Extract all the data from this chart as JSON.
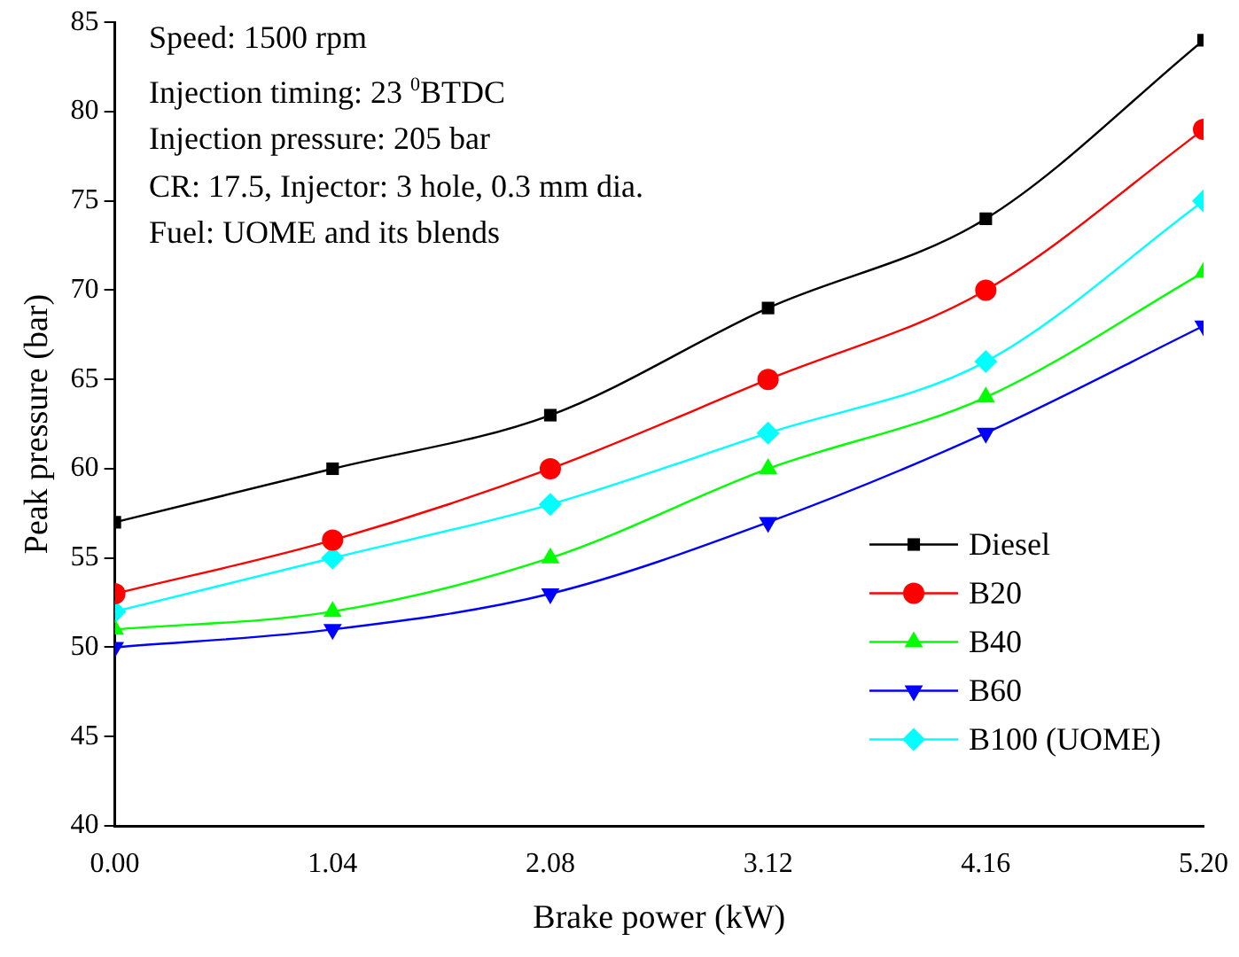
{
  "chart_data": {
    "type": "line",
    "xlabel": "Brake power (kW)",
    "ylabel": "Peak pressure (bar)",
    "x": [
      0,
      1.04,
      2.08,
      3.12,
      4.16,
      5.2
    ],
    "xlim": [
      0,
      5.2
    ],
    "xticks": [
      {
        "value": 0,
        "label": "0.00"
      },
      1.04,
      2.08,
      3.12,
      4.16,
      {
        "value": 5.2,
        "label": "5.20"
      }
    ],
    "ylim": [
      40,
      85
    ],
    "yticks": [
      40,
      45,
      50,
      55,
      60,
      65,
      70,
      75,
      80,
      85
    ],
    "grid": false,
    "legend": "bottom right",
    "line_style": "solid",
    "annotations": [
      "Speed: 1500 rpm",
      "Injection timing: 23 $^{0}$BTDC",
      "Injection pressure: 205 bar",
      "CR: 17.5, Injector: 3 hole, 0.3 mm dia.",
      "Fuel: UOME and its blends"
    ],
    "series": [
      {
        "name": "Diesel",
        "color": "#000000",
        "marker": "square",
        "values": [
          57,
          60,
          63,
          69,
          74,
          84
        ]
      },
      {
        "name": "B20",
        "color": "#ff0000",
        "marker": "circle",
        "values": [
          53,
          56,
          60,
          65,
          70,
          79
        ]
      },
      {
        "name": "B40",
        "color": "#00ff00",
        "marker": "triangle",
        "values": [
          51,
          52,
          55,
          60,
          64,
          71
        ]
      },
      {
        "name": "B60",
        "color": "#0000ff",
        "marker": "triangle-down",
        "values": [
          50,
          51,
          53,
          57,
          62,
          68
        ]
      },
      {
        "name": "B100 (UOME)",
        "color": "#00ffff",
        "marker": "diamond",
        "values": [
          52,
          55,
          58,
          62,
          66,
          75
        ]
      }
    ]
  }
}
